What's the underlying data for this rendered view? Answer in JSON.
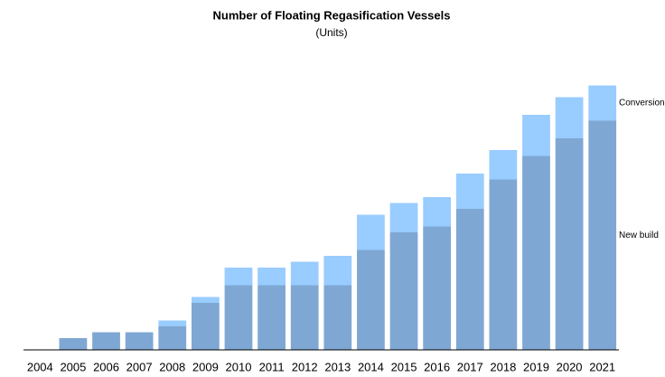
{
  "chart_data": {
    "type": "stacked_bar",
    "title": "Number of Floating Regasification Vessels",
    "subtitle": "(Units)",
    "categories": [
      "2004",
      "2005",
      "2006",
      "2007",
      "2008",
      "2009",
      "2010",
      "2011",
      "2012",
      "2013",
      "2014",
      "2015",
      "2016",
      "2017",
      "2018",
      "2019",
      "2020",
      "2021"
    ],
    "series": [
      {
        "name": "New build",
        "color": "#7fa7d3",
        "values": [
          0,
          2,
          3,
          3,
          4,
          8,
          11,
          11,
          11,
          11,
          17,
          20,
          21,
          24,
          29,
          33,
          36,
          39
        ]
      },
      {
        "name": "Conversion",
        "color": "#99ccff",
        "values": [
          0,
          0,
          0,
          0,
          1,
          1,
          3,
          3,
          4,
          5,
          6,
          5,
          5,
          6,
          5,
          7,
          7,
          6
        ]
      }
    ],
    "ylim": [
      0,
      48
    ]
  }
}
